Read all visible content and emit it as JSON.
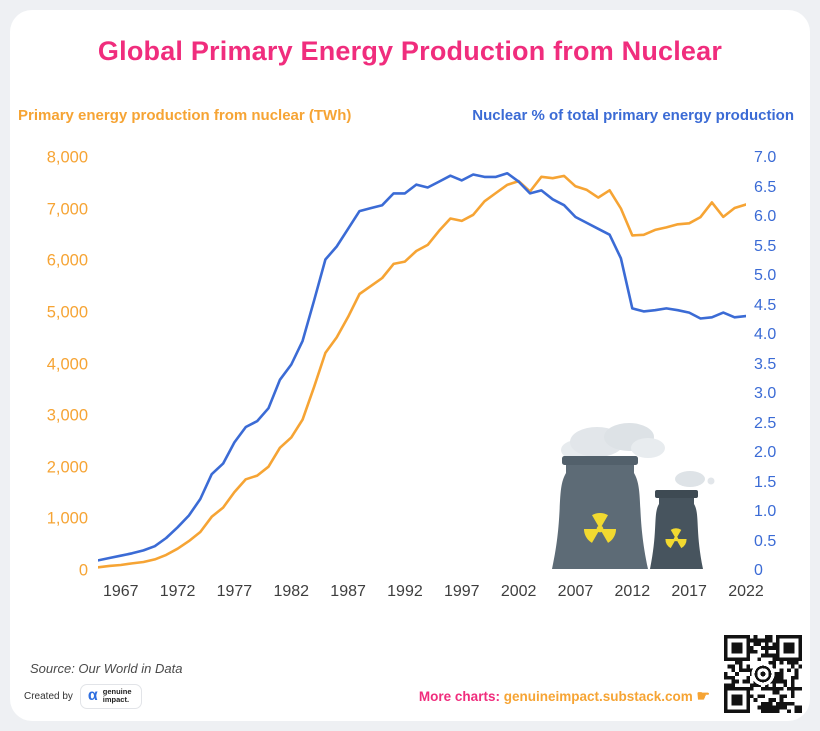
{
  "title": "Global Primary Energy Production from Nuclear",
  "colors": {
    "title_pink": "#F02D7D",
    "orange": "#F6A434",
    "blue": "#3B6BD5",
    "x_label_gray": "#3E3E3E",
    "qr_dark": "#121212",
    "tower_light": "#5D6B76",
    "tower_dark": "#47545E",
    "radiation_yellow": "#F2D930"
  },
  "left_axis": {
    "label": "Primary energy production from nuclear (TWh)",
    "ticks": [
      "8,000",
      "7,000",
      "6,000",
      "5,000",
      "4,000",
      "3,000",
      "2,000",
      "1,000",
      "0"
    ]
  },
  "right_axis": {
    "label": "Nuclear % of total primary energy production",
    "ticks": [
      "7.0",
      "6.5",
      "6.0",
      "5.5",
      "5.0",
      "4.5",
      "4.0",
      "3.5",
      "3.0",
      "2.5",
      "2.0",
      "1.5",
      "1.0",
      "0.5",
      "0"
    ]
  },
  "x_axis": {
    "ticks": [
      "1967",
      "1972",
      "1977",
      "1982",
      "1987",
      "1992",
      "1997",
      "2002",
      "2007",
      "2012",
      "2017",
      "2022"
    ]
  },
  "chart_data": {
    "type": "line",
    "title": "Global Primary Energy Production from Nuclear",
    "x": [
      1965,
      1966,
      1967,
      1968,
      1969,
      1970,
      1971,
      1972,
      1973,
      1974,
      1975,
      1976,
      1977,
      1978,
      1979,
      1980,
      1981,
      1982,
      1983,
      1984,
      1985,
      1986,
      1987,
      1988,
      1989,
      1990,
      1991,
      1992,
      1993,
      1994,
      1995,
      1996,
      1997,
      1998,
      1999,
      2000,
      2001,
      2002,
      2003,
      2004,
      2005,
      2006,
      2007,
      2008,
      2009,
      2010,
      2011,
      2012,
      2013,
      2014,
      2015,
      2016,
      2017,
      2018,
      2019,
      2020,
      2021,
      2022
    ],
    "x_ticks": [
      1967,
      1972,
      1977,
      1982,
      1987,
      1992,
      1997,
      2002,
      2007,
      2012,
      2017,
      2022
    ],
    "left_ylim": [
      0,
      8000
    ],
    "right_ylim": [
      0,
      7.0
    ],
    "grid": false,
    "legend_position": "axis-labels-above-chart",
    "series": [
      {
        "name": "Primary energy production from nuclear (TWh)",
        "axis": "left",
        "color": "#F6A434",
        "values": [
          72,
          98,
          116,
          148,
          175,
          224,
          311,
          432,
          579,
          756,
          1049,
          1228,
          1528,
          1776,
          1847,
          2020,
          2386,
          2588,
          2933,
          3560,
          4225,
          4525,
          4922,
          5366,
          5519,
          5676,
          5948,
          5993,
          6199,
          6316,
          6590,
          6829,
          6782,
          6899,
          7162,
          7323,
          7481,
          7552,
          7351,
          7636,
          7608,
          7654,
          7452,
          7382,
          7233,
          7374,
          7022,
          6501,
          6513,
          6607,
          6656,
          6715,
          6735,
          6856,
          7140,
          6860,
          7031,
          7100
        ]
      },
      {
        "name": "Nuclear % of total primary energy production",
        "axis": "right",
        "color": "#3B6BD5",
        "values": [
          0.18,
          0.22,
          0.26,
          0.3,
          0.35,
          0.42,
          0.56,
          0.74,
          0.94,
          1.22,
          1.64,
          1.82,
          2.18,
          2.44,
          2.54,
          2.76,
          3.24,
          3.5,
          3.9,
          4.58,
          5.28,
          5.5,
          5.8,
          6.1,
          6.15,
          6.2,
          6.4,
          6.4,
          6.55,
          6.5,
          6.6,
          6.7,
          6.62,
          6.72,
          6.68,
          6.68,
          6.74,
          6.6,
          6.4,
          6.45,
          6.3,
          6.2,
          6.0,
          5.9,
          5.8,
          5.7,
          5.3,
          4.45,
          4.4,
          4.42,
          4.45,
          4.42,
          4.38,
          4.28,
          4.3,
          4.38,
          4.3,
          4.32
        ]
      }
    ]
  },
  "footer": {
    "source": "Source: Our World in Data",
    "created_by_label": "Created by",
    "logo_glyph": "α",
    "logo_line1": "genuine",
    "logo_line2": "impact.",
    "more_charts_label": "More charts:",
    "more_charts_link": "genuineimpact.substack.com",
    "pointer_glyph": "☛"
  }
}
